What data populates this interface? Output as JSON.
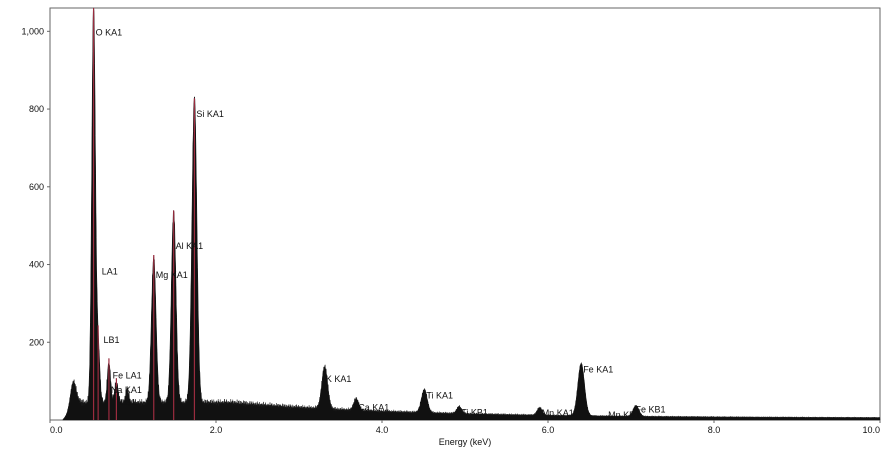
{
  "chart_data": {
    "type": "area",
    "title": "",
    "xlabel": "Energy (keV)",
    "ylabel": "",
    "xlim": [
      0,
      10
    ],
    "ylim": [
      0,
      1060
    ],
    "grid": false,
    "legend": "none",
    "x_ticks": [
      {
        "value": 0,
        "label": "0.0"
      },
      {
        "value": 2,
        "label": "2.0"
      },
      {
        "value": 4,
        "label": "4.0"
      },
      {
        "value": 6,
        "label": "6.0"
      },
      {
        "value": 8,
        "label": "8.0"
      },
      {
        "value": 10,
        "label": "10.0"
      }
    ],
    "y_ticks": [
      {
        "value": 200,
        "label": "200"
      },
      {
        "value": 400,
        "label": "400"
      },
      {
        "value": 600,
        "label": "600"
      },
      {
        "value": 800,
        "label": "800"
      },
      {
        "value": 1000,
        "label": "1,000"
      }
    ],
    "colors": {
      "fill": "#111111",
      "marker": "#9b2c3f",
      "axis": "#666666"
    },
    "background_level": 30,
    "peaks": [
      {
        "x": 0.28,
        "height": 70,
        "width": 0.035
      },
      {
        "x": 0.525,
        "height": 1030,
        "width": 0.022
      },
      {
        "x": 0.58,
        "height": 150,
        "width": 0.02
      },
      {
        "x": 0.71,
        "height": 105,
        "width": 0.02
      },
      {
        "x": 0.8,
        "height": 55,
        "width": 0.02
      },
      {
        "x": 0.93,
        "height": 35,
        "width": 0.02
      },
      {
        "x": 1.25,
        "height": 375,
        "width": 0.028
      },
      {
        "x": 1.49,
        "height": 495,
        "width": 0.028
      },
      {
        "x": 1.74,
        "height": 790,
        "width": 0.03
      },
      {
        "x": 3.31,
        "height": 110,
        "width": 0.035
      },
      {
        "x": 3.69,
        "height": 30,
        "width": 0.03
      },
      {
        "x": 4.51,
        "height": 60,
        "width": 0.035
      },
      {
        "x": 4.93,
        "height": 18,
        "width": 0.03
      },
      {
        "x": 5.9,
        "height": 20,
        "width": 0.03
      },
      {
        "x": 6.4,
        "height": 135,
        "width": 0.04
      },
      {
        "x": 7.06,
        "height": 28,
        "width": 0.035
      }
    ],
    "markers": [
      0.525,
      0.58,
      0.71,
      0.8,
      1.25,
      1.49,
      1.74
    ],
    "peak_labels": [
      {
        "text": "O KA1",
        "x": 0.525,
        "y": 1000
      },
      {
        "text": "Si KA1",
        "x": 1.74,
        "y": 790
      },
      {
        "text": "Al KA1",
        "x": 1.49,
        "y": 450
      },
      {
        "text": "Mg KA1",
        "x": 1.25,
        "y": 375
      },
      {
        "text": "LA1",
        "x": 0.6,
        "y": 385
      },
      {
        "text": "LB1",
        "x": 0.62,
        "y": 208
      },
      {
        "text": "Fe LA1",
        "x": 0.73,
        "y": 117
      },
      {
        "text": "Na KA1",
        "x": 0.71,
        "y": 80
      },
      {
        "text": "LB1",
        "x": 0.82,
        "y": 48
      },
      {
        "text": "K KA1",
        "x": 3.3,
        "y": 108
      },
      {
        "text": "Ca KA1",
        "x": 3.69,
        "y": 35
      },
      {
        "text": "Ti KA1",
        "x": 4.51,
        "y": 65
      },
      {
        "text": "Ti KB1",
        "x": 4.93,
        "y": 22
      },
      {
        "text": "Mn KA1",
        "x": 5.9,
        "y": 20
      },
      {
        "text": "Fe KA1",
        "x": 6.4,
        "y": 133
      },
      {
        "text": "Fe KB1",
        "x": 7.03,
        "y": 30
      },
      {
        "text": "Mn KB1",
        "x": 6.7,
        "y": 15
      }
    ]
  }
}
